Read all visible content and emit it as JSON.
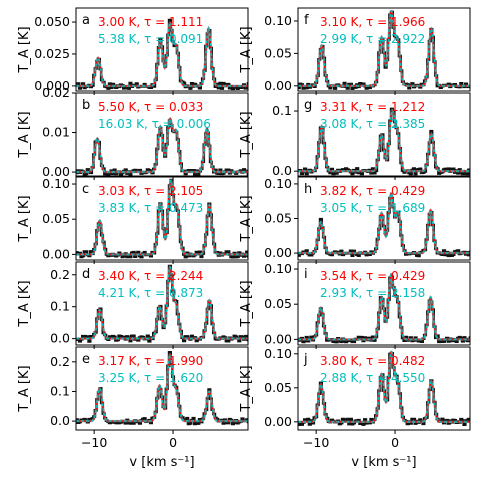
{
  "chart_data": {
    "type": "line",
    "layout": "5 rows x 2 columns of spectra sharing the x axis",
    "xlabel": "v [km s⁻¹]",
    "ylabel": "T_A [K]",
    "xlim": [
      -12.3,
      9.5
    ],
    "x_ticks": [
      -10,
      0
    ],
    "x_tick_labels": [
      "−10",
      "0"
    ],
    "series_styles": [
      {
        "role": "observed spectrum",
        "color": "#000000",
        "style": "solid stepped"
      },
      {
        "role": "fit 1",
        "color": "#ff0000",
        "style": "solid"
      },
      {
        "role": "fit 2",
        "color": "#00bfbf",
        "style": "dashed"
      }
    ],
    "fit_line_color": "#ff0000",
    "fit2_line_color": "#00bfbf",
    "panel_base_color": "#808080",
    "panels": [
      {
        "id": "a",
        "col": 0,
        "row": 0,
        "ylim": [
          -0.004,
          0.061
        ],
        "yticks": [
          0.0,
          0.025,
          0.05
        ],
        "ytick_labels": [
          "0.000",
          "0.025",
          "0.050"
        ],
        "fit1": {
          "text": "3.00 K,  τ = 1.111",
          "color": "#ff0000"
        },
        "fit2": {
          "text": "5.38 K,  τ = 0.091",
          "color": "#00bfbf"
        },
        "peaks": [
          {
            "v": -9.5,
            "height": 0.022
          },
          {
            "v": -1.6,
            "height": 0.035
          },
          {
            "v": -0.4,
            "height": 0.048
          },
          {
            "v": 0.4,
            "height": 0.03
          },
          {
            "v": 4.5,
            "height": 0.045
          }
        ]
      },
      {
        "id": "f",
        "col": 1,
        "row": 0,
        "ylim": [
          -0.008,
          0.12
        ],
        "yticks": [
          0.0,
          0.05,
          0.1
        ],
        "ytick_labels": [
          "0.00",
          "0.05",
          "0.10"
        ],
        "fit1": {
          "text": "3.10 K,  τ = 1.966",
          "color": "#ff0000"
        },
        "fit2": {
          "text": "2.99 K,  τ = 2.922",
          "color": "#00bfbf"
        },
        "peaks": [
          {
            "v": -9.3,
            "height": 0.062
          },
          {
            "v": -1.7,
            "height": 0.075
          },
          {
            "v": -0.5,
            "height": 0.112
          },
          {
            "v": 0.3,
            "height": 0.07
          },
          {
            "v": 4.6,
            "height": 0.088
          }
        ]
      },
      {
        "id": "b",
        "col": 0,
        "row": 1,
        "ylim": [
          -0.001,
          0.02
        ],
        "yticks": [
          0.0,
          0.01,
          0.02
        ],
        "ytick_labels": [
          "0.00",
          "0.01",
          "0.02"
        ],
        "fit1": {
          "text": "5.50 K,  τ = 0.033",
          "color": "#ff0000"
        },
        "fit2": {
          "text": "16.03 K,  τ = 0.006",
          "color": "#00bfbf"
        },
        "peaks": [
          {
            "v": -9.6,
            "height": 0.0085
          },
          {
            "v": -1.6,
            "height": 0.0115
          },
          {
            "v": -0.4,
            "height": 0.013
          },
          {
            "v": 0.4,
            "height": 0.01
          },
          {
            "v": 4.3,
            "height": 0.011
          }
        ]
      },
      {
        "id": "g",
        "col": 1,
        "row": 1,
        "ylim": [
          -0.008,
          0.13
        ],
        "yticks": [
          0.0,
          0.1
        ],
        "ytick_labels": [
          "0.0",
          "0.1"
        ],
        "fit1": {
          "text": "3.31 K,  τ = 1.212",
          "color": "#ff0000"
        },
        "fit2": {
          "text": "3.08 K,  τ = 2.385",
          "color": "#00bfbf"
        },
        "peaks": [
          {
            "v": -9.3,
            "height": 0.075
          },
          {
            "v": -1.7,
            "height": 0.06
          },
          {
            "v": -0.4,
            "height": 0.095
          },
          {
            "v": 0.3,
            "height": 0.06
          },
          {
            "v": 4.6,
            "height": 0.062
          }
        ]
      },
      {
        "id": "c",
        "col": 0,
        "row": 2,
        "ylim": [
          -0.008,
          0.11
        ],
        "yticks": [
          0.0,
          0.05,
          0.1
        ],
        "ytick_labels": [
          "0.00",
          "0.05",
          "0.10"
        ],
        "fit1": {
          "text": "3.03 K,  τ = 2.105",
          "color": "#ff0000"
        },
        "fit2": {
          "text": "3.83 K,  τ = 0.473",
          "color": "#00bfbf"
        },
        "peaks": [
          {
            "v": -9.3,
            "height": 0.048
          },
          {
            "v": -1.6,
            "height": 0.072
          },
          {
            "v": -0.3,
            "height": 0.102
          },
          {
            "v": 0.5,
            "height": 0.065
          },
          {
            "v": 4.6,
            "height": 0.07
          }
        ]
      },
      {
        "id": "h",
        "col": 1,
        "row": 2,
        "ylim": [
          -0.01,
          0.11
        ],
        "yticks": [
          0.0,
          0.05,
          0.1
        ],
        "ytick_labels": [
          "0.00",
          "0.05",
          "0.10"
        ],
        "fit1": {
          "text": "3.82 K,  τ = 0.429",
          "color": "#ff0000"
        },
        "fit2": {
          "text": "3.05 K,  τ = 1.689",
          "color": "#00bfbf"
        },
        "peaks": [
          {
            "v": -9.4,
            "height": 0.045
          },
          {
            "v": -1.7,
            "height": 0.058
          },
          {
            "v": -0.5,
            "height": 0.085
          },
          {
            "v": 0.4,
            "height": 0.058
          },
          {
            "v": 4.5,
            "height": 0.062
          }
        ]
      },
      {
        "id": "d",
        "col": 0,
        "row": 3,
        "ylim": [
          -0.02,
          0.24
        ],
        "yticks": [
          0.0,
          0.1,
          0.2
        ],
        "ytick_labels": [
          "0.0",
          "0.1",
          "0.2"
        ],
        "fit1": {
          "text": "3.40 K,  τ = 2.244",
          "color": "#ff0000"
        },
        "fit2": {
          "text": "4.21 K,  τ = 0.873",
          "color": "#00bfbf"
        },
        "peaks": [
          {
            "v": -9.3,
            "height": 0.09
          },
          {
            "v": -1.7,
            "height": 0.1
          },
          {
            "v": -0.4,
            "height": 0.22
          },
          {
            "v": 0.4,
            "height": 0.1
          },
          {
            "v": 4.6,
            "height": 0.12
          }
        ]
      },
      {
        "id": "i",
        "col": 1,
        "row": 3,
        "ylim": [
          -0.008,
          0.11
        ],
        "yticks": [
          0.0,
          0.05,
          0.1
        ],
        "ytick_labels": [
          "0.00",
          "0.05",
          "0.10"
        ],
        "fit1": {
          "text": "3.54 K,  τ = 0.429",
          "color": "#ff0000"
        },
        "fit2": {
          "text": "2.93 K,  τ = 2.158",
          "color": "#00bfbf"
        },
        "peaks": [
          {
            "v": -9.4,
            "height": 0.045
          },
          {
            "v": -1.7,
            "height": 0.06
          },
          {
            "v": -0.5,
            "height": 0.09
          },
          {
            "v": 0.3,
            "height": 0.055
          },
          {
            "v": 4.5,
            "height": 0.06
          }
        ]
      },
      {
        "id": "e",
        "col": 0,
        "row": 4,
        "ylim": [
          -0.03,
          0.25
        ],
        "yticks": [
          0.0,
          0.1,
          0.2
        ],
        "ytick_labels": [
          "0.0",
          "0.1",
          "0.2"
        ],
        "fit1": {
          "text": "3.17 K,  τ = 1.990",
          "color": "#ff0000"
        },
        "fit2": {
          "text": "3.25 K,  τ = 1.620",
          "color": "#00bfbf"
        },
        "peaks": [
          {
            "v": -9.3,
            "height": 0.11
          },
          {
            "v": -1.7,
            "height": 0.12
          },
          {
            "v": -0.4,
            "height": 0.22
          },
          {
            "v": 0.4,
            "height": 0.1
          },
          {
            "v": 4.6,
            "height": 0.1
          }
        ]
      },
      {
        "id": "j",
        "col": 1,
        "row": 4,
        "ylim": [
          -0.012,
          0.11
        ],
        "yticks": [
          0.0,
          0.05,
          0.1
        ],
        "ytick_labels": [
          "0.00",
          "0.05",
          "0.10"
        ],
        "fit1": {
          "text": "3.80 K,  τ = 0.482",
          "color": "#ff0000"
        },
        "fit2": {
          "text": "2.88 K,  τ = 4.550",
          "color": "#00bfbf"
        },
        "peaks": [
          {
            "v": -9.4,
            "height": 0.055
          },
          {
            "v": -1.7,
            "height": 0.07
          },
          {
            "v": -0.5,
            "height": 0.1
          },
          {
            "v": 0.3,
            "height": 0.06
          },
          {
            "v": 4.6,
            "height": 0.06
          }
        ]
      }
    ]
  }
}
